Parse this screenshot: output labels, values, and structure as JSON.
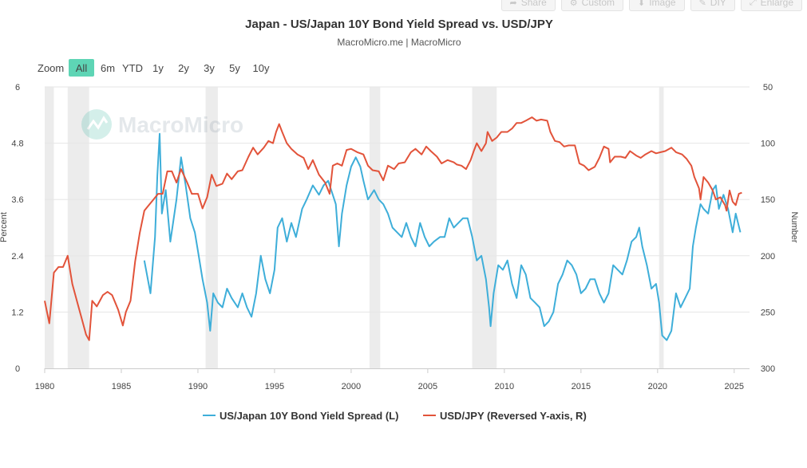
{
  "toolbar": {
    "buttons": [
      {
        "label": "Share",
        "icon": "share-icon"
      },
      {
        "label": "Custom",
        "icon": "sliders-icon"
      },
      {
        "label": "Image",
        "icon": "download-icon"
      },
      {
        "label": "DIY",
        "icon": "pencil-icon"
      },
      {
        "label": "Enlarge",
        "icon": "expand-icon"
      }
    ]
  },
  "range_selector": {
    "zoom_label": "Zoom",
    "buttons": [
      "All",
      "6m",
      "YTD",
      "1y",
      "2y",
      "3y",
      "5y",
      "10y"
    ],
    "active": "All",
    "active_color": "#5ed5b5"
  },
  "watermark": "MacroMicro",
  "colors": {
    "spread": "#3eaed9",
    "usdjpy": "#e2533a",
    "recession": "#ececec",
    "grid": "#e6e6e6"
  },
  "chart_data": {
    "type": "line",
    "title": "Japan - US/Japan 10Y Bond Yield Spread vs. USD/JPY",
    "subtitle": "MacroMicro.me | MacroMicro",
    "x_range": [
      1980,
      2026
    ],
    "x_ticks": [
      1980,
      1985,
      1990,
      1995,
      2000,
      2005,
      2010,
      2015,
      2020,
      2025
    ],
    "y_left": {
      "label": "Percent",
      "range": [
        0,
        6
      ],
      "ticks": [
        "0",
        "1.2",
        "2.4",
        "3.6",
        "4.8",
        "6"
      ]
    },
    "y_right": {
      "label": "Number",
      "range": [
        50,
        300
      ],
      "reversed": true,
      "ticks": [
        "50",
        "100",
        "150",
        "200",
        "250",
        "300"
      ]
    },
    "recession_periods": [
      [
        1980.0,
        1980.6
      ],
      [
        1981.5,
        1982.9
      ],
      [
        1990.5,
        1991.3
      ],
      [
        2001.2,
        2001.9
      ],
      [
        2007.9,
        2009.5
      ],
      [
        2020.1,
        2020.4
      ]
    ],
    "series": [
      {
        "name": "US/Japan 10Y Bond Yield Spread (L)",
        "axis": "left",
        "color": "#3eaed9",
        "points": [
          [
            1986.5,
            2.3
          ],
          [
            1986.9,
            1.6
          ],
          [
            1987.2,
            2.8
          ],
          [
            1987.35,
            4.1
          ],
          [
            1987.5,
            5.0
          ],
          [
            1987.65,
            3.3
          ],
          [
            1987.9,
            3.8
          ],
          [
            1988.2,
            2.7
          ],
          [
            1988.6,
            3.6
          ],
          [
            1988.9,
            4.5
          ],
          [
            1989.2,
            3.9
          ],
          [
            1989.5,
            3.2
          ],
          [
            1989.8,
            2.9
          ],
          [
            1990.0,
            2.5
          ],
          [
            1990.3,
            1.9
          ],
          [
            1990.6,
            1.4
          ],
          [
            1990.8,
            0.8
          ],
          [
            1991.0,
            1.6
          ],
          [
            1991.3,
            1.4
          ],
          [
            1991.6,
            1.3
          ],
          [
            1991.9,
            1.7
          ],
          [
            1992.2,
            1.5
          ],
          [
            1992.6,
            1.3
          ],
          [
            1992.9,
            1.6
          ],
          [
            1993.2,
            1.3
          ],
          [
            1993.5,
            1.1
          ],
          [
            1993.8,
            1.6
          ],
          [
            1994.1,
            2.4
          ],
          [
            1994.4,
            1.9
          ],
          [
            1994.7,
            1.6
          ],
          [
            1995.0,
            2.1
          ],
          [
            1995.2,
            3.0
          ],
          [
            1995.5,
            3.2
          ],
          [
            1995.8,
            2.7
          ],
          [
            1996.1,
            3.1
          ],
          [
            1996.4,
            2.8
          ],
          [
            1996.8,
            3.4
          ],
          [
            1997.1,
            3.6
          ],
          [
            1997.5,
            3.9
          ],
          [
            1997.9,
            3.7
          ],
          [
            1998.2,
            3.9
          ],
          [
            1998.5,
            4.0
          ],
          [
            1998.8,
            3.7
          ],
          [
            1999.0,
            3.5
          ],
          [
            1999.2,
            2.6
          ],
          [
            1999.4,
            3.3
          ],
          [
            1999.7,
            3.9
          ],
          [
            2000.0,
            4.3
          ],
          [
            2000.3,
            4.5
          ],
          [
            2000.6,
            4.3
          ],
          [
            2000.8,
            4.0
          ],
          [
            2001.1,
            3.6
          ],
          [
            2001.5,
            3.8
          ],
          [
            2001.8,
            3.6
          ],
          [
            2002.1,
            3.5
          ],
          [
            2002.4,
            3.3
          ],
          [
            2002.7,
            3.0
          ],
          [
            2003.0,
            2.9
          ],
          [
            2003.3,
            2.8
          ],
          [
            2003.6,
            3.1
          ],
          [
            2003.9,
            2.8
          ],
          [
            2004.2,
            2.6
          ],
          [
            2004.5,
            3.1
          ],
          [
            2004.8,
            2.8
          ],
          [
            2005.1,
            2.6
          ],
          [
            2005.4,
            2.7
          ],
          [
            2005.8,
            2.8
          ],
          [
            2006.1,
            2.8
          ],
          [
            2006.4,
            3.2
          ],
          [
            2006.7,
            3.0
          ],
          [
            2007.0,
            3.1
          ],
          [
            2007.3,
            3.2
          ],
          [
            2007.6,
            3.2
          ],
          [
            2007.9,
            2.8
          ],
          [
            2008.2,
            2.3
          ],
          [
            2008.5,
            2.4
          ],
          [
            2008.8,
            1.9
          ],
          [
            2009.0,
            1.3
          ],
          [
            2009.1,
            0.9
          ],
          [
            2009.3,
            1.6
          ],
          [
            2009.6,
            2.2
          ],
          [
            2009.9,
            2.1
          ],
          [
            2010.2,
            2.3
          ],
          [
            2010.5,
            1.8
          ],
          [
            2010.8,
            1.5
          ],
          [
            2011.1,
            2.2
          ],
          [
            2011.4,
            2.0
          ],
          [
            2011.7,
            1.5
          ],
          [
            2012.0,
            1.4
          ],
          [
            2012.3,
            1.3
          ],
          [
            2012.6,
            0.9
          ],
          [
            2012.9,
            1.0
          ],
          [
            2013.2,
            1.2
          ],
          [
            2013.5,
            1.8
          ],
          [
            2013.8,
            2.0
          ],
          [
            2014.1,
            2.3
          ],
          [
            2014.4,
            2.2
          ],
          [
            2014.7,
            2.0
          ],
          [
            2015.0,
            1.6
          ],
          [
            2015.3,
            1.7
          ],
          [
            2015.6,
            1.9
          ],
          [
            2015.9,
            1.9
          ],
          [
            2016.2,
            1.6
          ],
          [
            2016.5,
            1.4
          ],
          [
            2016.8,
            1.6
          ],
          [
            2017.1,
            2.2
          ],
          [
            2017.4,
            2.1
          ],
          [
            2017.7,
            2.0
          ],
          [
            2018.0,
            2.3
          ],
          [
            2018.3,
            2.7
          ],
          [
            2018.6,
            2.8
          ],
          [
            2018.8,
            3.0
          ],
          [
            2019.0,
            2.6
          ],
          [
            2019.3,
            2.2
          ],
          [
            2019.6,
            1.7
          ],
          [
            2019.9,
            1.8
          ],
          [
            2020.1,
            1.4
          ],
          [
            2020.3,
            0.7
          ],
          [
            2020.6,
            0.6
          ],
          [
            2020.9,
            0.8
          ],
          [
            2021.2,
            1.6
          ],
          [
            2021.5,
            1.3
          ],
          [
            2021.8,
            1.5
          ],
          [
            2022.1,
            1.7
          ],
          [
            2022.3,
            2.6
          ],
          [
            2022.5,
            3.0
          ],
          [
            2022.8,
            3.5
          ],
          [
            2023.0,
            3.4
          ],
          [
            2023.3,
            3.3
          ],
          [
            2023.6,
            3.8
          ],
          [
            2023.8,
            3.9
          ],
          [
            2024.0,
            3.4
          ],
          [
            2024.3,
            3.7
          ],
          [
            2024.6,
            3.4
          ],
          [
            2024.9,
            2.9
          ],
          [
            2025.1,
            3.3
          ],
          [
            2025.4,
            2.9
          ]
        ]
      },
      {
        "name": "USD/JPY (Reversed Y-axis, R)",
        "axis": "right",
        "color": "#e2533a",
        "points": [
          [
            1980.0,
            240
          ],
          [
            1980.3,
            260
          ],
          [
            1980.6,
            215
          ],
          [
            1980.9,
            210
          ],
          [
            1981.2,
            210
          ],
          [
            1981.5,
            200
          ],
          [
            1981.8,
            225
          ],
          [
            1982.1,
            240
          ],
          [
            1982.4,
            255
          ],
          [
            1982.7,
            270
          ],
          [
            1982.9,
            275
          ],
          [
            1983.1,
            240
          ],
          [
            1983.4,
            245
          ],
          [
            1983.8,
            235
          ],
          [
            1984.1,
            232
          ],
          [
            1984.4,
            235
          ],
          [
            1984.8,
            248
          ],
          [
            1985.1,
            262
          ],
          [
            1985.3,
            250
          ],
          [
            1985.6,
            240
          ],
          [
            1985.9,
            205
          ],
          [
            1986.2,
            180
          ],
          [
            1986.5,
            160
          ],
          [
            1986.8,
            155
          ],
          [
            1987.1,
            150
          ],
          [
            1987.4,
            145
          ],
          [
            1987.7,
            145
          ],
          [
            1988.0,
            125
          ],
          [
            1988.3,
            125
          ],
          [
            1988.6,
            135
          ],
          [
            1988.9,
            123
          ],
          [
            1989.3,
            135
          ],
          [
            1989.6,
            145
          ],
          [
            1990.0,
            145
          ],
          [
            1990.3,
            158
          ],
          [
            1990.6,
            148
          ],
          [
            1990.9,
            128
          ],
          [
            1991.2,
            138
          ],
          [
            1991.6,
            136
          ],
          [
            1991.9,
            127
          ],
          [
            1992.2,
            132
          ],
          [
            1992.6,
            125
          ],
          [
            1992.9,
            124
          ],
          [
            1993.3,
            112
          ],
          [
            1993.6,
            104
          ],
          [
            1993.9,
            110
          ],
          [
            1994.3,
            104
          ],
          [
            1994.6,
            98
          ],
          [
            1994.9,
            100
          ],
          [
            1995.1,
            90
          ],
          [
            1995.3,
            83
          ],
          [
            1995.5,
            90
          ],
          [
            1995.8,
            100
          ],
          [
            1996.1,
            105
          ],
          [
            1996.5,
            110
          ],
          [
            1996.9,
            113
          ],
          [
            1997.2,
            123
          ],
          [
            1997.5,
            115
          ],
          [
            1997.9,
            128
          ],
          [
            1998.3,
            135
          ],
          [
            1998.6,
            145
          ],
          [
            1998.8,
            120
          ],
          [
            1999.1,
            118
          ],
          [
            1999.4,
            120
          ],
          [
            1999.7,
            106
          ],
          [
            2000.0,
            105
          ],
          [
            2000.4,
            108
          ],
          [
            2000.8,
            110
          ],
          [
            2001.1,
            120
          ],
          [
            2001.4,
            124
          ],
          [
            2001.8,
            125
          ],
          [
            2002.1,
            133
          ],
          [
            2002.4,
            120
          ],
          [
            2002.8,
            123
          ],
          [
            2003.1,
            118
          ],
          [
            2003.5,
            117
          ],
          [
            2003.9,
            108
          ],
          [
            2004.2,
            105
          ],
          [
            2004.6,
            110
          ],
          [
            2004.9,
            103
          ],
          [
            2005.2,
            107
          ],
          [
            2005.6,
            112
          ],
          [
            2005.9,
            118
          ],
          [
            2006.3,
            115
          ],
          [
            2006.7,
            117
          ],
          [
            2006.9,
            119
          ],
          [
            2007.2,
            120
          ],
          [
            2007.5,
            123
          ],
          [
            2007.8,
            115
          ],
          [
            2008.0,
            107
          ],
          [
            2008.2,
            100
          ],
          [
            2008.5,
            107
          ],
          [
            2008.8,
            100
          ],
          [
            2008.9,
            90
          ],
          [
            2009.2,
            98
          ],
          [
            2009.5,
            95
          ],
          [
            2009.8,
            90
          ],
          [
            2010.2,
            90
          ],
          [
            2010.5,
            87
          ],
          [
            2010.8,
            82
          ],
          [
            2011.1,
            82
          ],
          [
            2011.4,
            80
          ],
          [
            2011.8,
            77
          ],
          [
            2012.1,
            80
          ],
          [
            2012.4,
            79
          ],
          [
            2012.8,
            80
          ],
          [
            2013.0,
            90
          ],
          [
            2013.3,
            98
          ],
          [
            2013.6,
            99
          ],
          [
            2013.9,
            103
          ],
          [
            2014.2,
            102
          ],
          [
            2014.6,
            102
          ],
          [
            2014.9,
            118
          ],
          [
            2015.2,
            120
          ],
          [
            2015.5,
            124
          ],
          [
            2015.9,
            121
          ],
          [
            2016.2,
            113
          ],
          [
            2016.5,
            103
          ],
          [
            2016.8,
            105
          ],
          [
            2016.9,
            117
          ],
          [
            2017.2,
            112
          ],
          [
            2017.6,
            112
          ],
          [
            2017.9,
            113
          ],
          [
            2018.2,
            107
          ],
          [
            2018.6,
            111
          ],
          [
            2018.9,
            113
          ],
          [
            2019.2,
            110
          ],
          [
            2019.6,
            107
          ],
          [
            2019.9,
            109
          ],
          [
            2020.2,
            108
          ],
          [
            2020.5,
            107
          ],
          [
            2020.9,
            104
          ],
          [
            2021.2,
            108
          ],
          [
            2021.6,
            110
          ],
          [
            2021.9,
            114
          ],
          [
            2022.2,
            120
          ],
          [
            2022.4,
            130
          ],
          [
            2022.7,
            140
          ],
          [
            2022.8,
            150
          ],
          [
            2023.0,
            130
          ],
          [
            2023.3,
            135
          ],
          [
            2023.6,
            142
          ],
          [
            2023.8,
            150
          ],
          [
            2024.1,
            148
          ],
          [
            2024.4,
            155
          ],
          [
            2024.5,
            160
          ],
          [
            2024.7,
            142
          ],
          [
            2024.9,
            152
          ],
          [
            2025.1,
            155
          ],
          [
            2025.3,
            145
          ],
          [
            2025.5,
            144
          ]
        ]
      }
    ],
    "legend_position": "bottom-center"
  }
}
